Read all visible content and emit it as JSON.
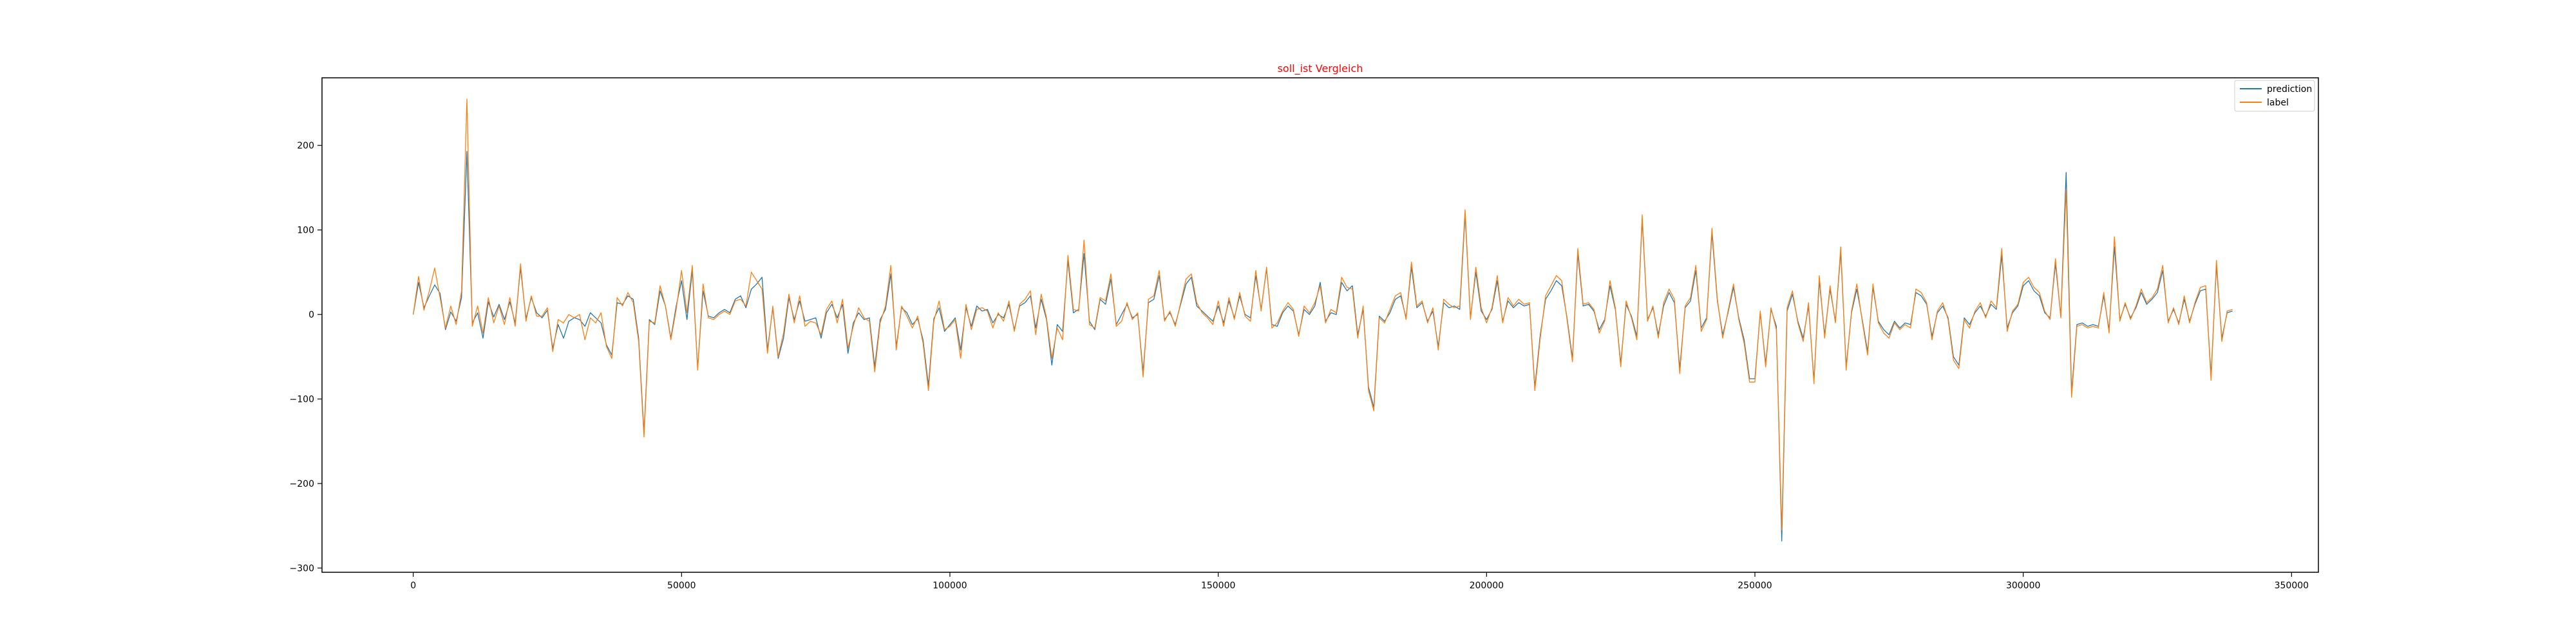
{
  "chart_data": {
    "type": "line",
    "title": "soll_ist Vergleich",
    "title_color": "#ff0000",
    "xlabel": "",
    "ylabel": "",
    "xlim": [
      -17000,
      355000
    ],
    "ylim": [
      -305,
      280
    ],
    "xticks": [
      0,
      50000,
      100000,
      150000,
      200000,
      250000,
      300000,
      350000
    ],
    "yticks": [
      -300,
      -200,
      -100,
      0,
      100,
      200
    ],
    "xtick_labels": [
      "0",
      "50000",
      "100000",
      "150000",
      "200000",
      "250000",
      "300000",
      "350000"
    ],
    "ytick_labels": [
      "−300",
      "−200",
      "−100",
      "0",
      "100",
      "200"
    ],
    "grid": false,
    "legend_position": "top-right",
    "x_step": 1000,
    "series": [
      {
        "name": "prediction",
        "color": "#1f77b4",
        "values": [
          0,
          38,
          8,
          22,
          35,
          25,
          -18,
          3,
          -8,
          20,
          193,
          -10,
          2,
          -28,
          15,
          -3,
          12,
          -6,
          15,
          -10,
          55,
          -5,
          20,
          2,
          -4,
          5,
          -40,
          -12,
          -28,
          -8,
          -4,
          -6,
          -14,
          2,
          -4,
          -10,
          -36,
          -48,
          14,
          12,
          22,
          18,
          -28,
          -140,
          -6,
          -12,
          28,
          10,
          -28,
          10,
          40,
          -6,
          52,
          -64,
          28,
          -2,
          -4,
          2,
          6,
          2,
          18,
          22,
          8,
          30,
          36,
          44,
          -42,
          8,
          -52,
          -28,
          20,
          -6,
          16,
          -8,
          -6,
          -4,
          -28,
          2,
          12,
          -4,
          12,
          -46,
          -10,
          2,
          -6,
          -4,
          -62,
          -6,
          6,
          48,
          -38,
          8,
          2,
          -12,
          -5,
          -30,
          -84,
          -5,
          8,
          -20,
          -12,
          -4,
          -42,
          8,
          -14,
          10,
          4,
          6,
          -10,
          0,
          -4,
          12,
          -18,
          10,
          14,
          22,
          -16,
          18,
          -6,
          -60,
          -12,
          -20,
          64,
          2,
          6,
          72,
          -8,
          -18,
          18,
          12,
          42,
          -12,
          0,
          12,
          -4,
          0,
          -68,
          14,
          18,
          46,
          -6,
          2,
          -12,
          12,
          36,
          44,
          10,
          4,
          -2,
          -8,
          10,
          -10,
          16,
          -4,
          22,
          0,
          -4,
          46,
          6,
          54,
          -12,
          -14,
          2,
          10,
          4,
          -24,
          6,
          0,
          10,
          38,
          -8,
          2,
          0,
          38,
          28,
          34,
          -24,
          6,
          -86,
          -110,
          -2,
          -8,
          2,
          18,
          22,
          -4,
          56,
          8,
          14,
          -8,
          4,
          -38,
          14,
          8,
          10,
          6,
          118,
          -4,
          50,
          4,
          -6,
          6,
          40,
          -8,
          16,
          8,
          14,
          10,
          12,
          -86,
          -24,
          18,
          28,
          40,
          34,
          -4,
          -52,
          72,
          10,
          12,
          4,
          -18,
          -6,
          34,
          6,
          -58,
          12,
          -2,
          -26,
          112,
          -6,
          8,
          -24,
          10,
          26,
          14,
          -64,
          8,
          16,
          52,
          -16,
          -4,
          96,
          16,
          -24,
          2,
          32,
          -4,
          -30,
          -76,
          -76,
          2,
          -58,
          6,
          -14,
          -268,
          4,
          24,
          -8,
          -28,
          10,
          -78,
          40,
          -24,
          30,
          -8,
          74,
          -62,
          2,
          30,
          -6,
          -44,
          32,
          -8,
          -18,
          -24,
          -8,
          -16,
          -10,
          -12,
          26,
          22,
          12,
          -26,
          2,
          10,
          -4,
          -50,
          -60,
          -4,
          -12,
          2,
          10,
          -2,
          12,
          6,
          70,
          -16,
          2,
          10,
          34,
          40,
          28,
          22,
          2,
          -4,
          60,
          -2,
          168,
          -92,
          -12,
          -10,
          -14,
          -12,
          -14,
          22,
          -18,
          80,
          -6,
          12,
          -4,
          8,
          26,
          12,
          18,
          26,
          52,
          -8,
          6,
          -10,
          18,
          -8,
          12,
          28,
          30,
          -72,
          58,
          -28,
          2,
          4
        ]
      },
      {
        "name": "label",
        "color": "#ff7f0e",
        "values": [
          0,
          45,
          5,
          28,
          55,
          20,
          -16,
          10,
          -12,
          28,
          255,
          -14,
          10,
          -22,
          20,
          -10,
          10,
          -12,
          20,
          -14,
          60,
          -8,
          22,
          -2,
          -2,
          8,
          -44,
          -6,
          -10,
          0,
          -4,
          0,
          -30,
          -4,
          -10,
          2,
          -38,
          -52,
          20,
          10,
          26,
          14,
          -32,
          -145,
          -8,
          -10,
          34,
          10,
          -30,
          6,
          52,
          2,
          58,
          -66,
          36,
          -4,
          -6,
          0,
          4,
          0,
          16,
          18,
          10,
          50,
          40,
          30,
          -46,
          10,
          -50,
          -22,
          24,
          -10,
          22,
          -14,
          -8,
          -10,
          -24,
          6,
          16,
          -10,
          18,
          -40,
          -14,
          8,
          -4,
          -8,
          -68,
          -10,
          10,
          58,
          -42,
          10,
          -2,
          -16,
          -2,
          -34,
          -90,
          -8,
          16,
          -18,
          -14,
          -6,
          -52,
          12,
          -18,
          6,
          8,
          4,
          -16,
          2,
          -8,
          16,
          -20,
          12,
          18,
          28,
          -24,
          24,
          -4,
          -52,
          -16,
          -30,
          70,
          6,
          4,
          88,
          -12,
          -16,
          20,
          16,
          48,
          -14,
          -8,
          14,
          -6,
          2,
          -74,
          18,
          22,
          52,
          -8,
          4,
          -14,
          14,
          42,
          48,
          14,
          2,
          -4,
          -12,
          16,
          -14,
          20,
          -6,
          26,
          -2,
          -8,
          52,
          4,
          56,
          -16,
          -10,
          4,
          14,
          6,
          -26,
          10,
          2,
          14,
          34,
          -10,
          6,
          2,
          44,
          32,
          30,
          -28,
          10,
          -90,
          -114,
          -4,
          -10,
          6,
          22,
          26,
          -6,
          62,
          10,
          16,
          -10,
          8,
          -42,
          18,
          12,
          8,
          10,
          124,
          -6,
          56,
          8,
          -10,
          8,
          46,
          -10,
          20,
          10,
          18,
          12,
          14,
          -90,
          -28,
          22,
          34,
          46,
          40,
          -6,
          -56,
          78,
          12,
          14,
          6,
          -22,
          -8,
          40,
          8,
          -62,
          16,
          -4,
          -30,
          118,
          -8,
          10,
          -28,
          14,
          30,
          18,
          -70,
          10,
          20,
          58,
          -20,
          -6,
          102,
          18,
          -28,
          4,
          36,
          -6,
          -34,
          -80,
          -80,
          4,
          -62,
          8,
          -18,
          -255,
          8,
          28,
          -10,
          -32,
          14,
          -82,
          46,
          -28,
          34,
          -10,
          80,
          -66,
          4,
          36,
          -8,
          -48,
          36,
          -10,
          -22,
          -28,
          -10,
          -18,
          -12,
          -16,
          30,
          26,
          14,
          -30,
          4,
          14,
          -6,
          -54,
          -64,
          -6,
          -16,
          4,
          14,
          -4,
          16,
          8,
          78,
          -20,
          4,
          12,
          38,
          44,
          32,
          26,
          4,
          -6,
          66,
          -4,
          148,
          -98,
          -14,
          -12,
          -16,
          -14,
          -16,
          26,
          -22,
          92,
          -8,
          14,
          -6,
          10,
          30,
          14,
          20,
          30,
          58,
          -10,
          8,
          -12,
          22,
          -10,
          14,
          32,
          34,
          -78,
          64,
          -32,
          4,
          6
        ]
      }
    ]
  }
}
